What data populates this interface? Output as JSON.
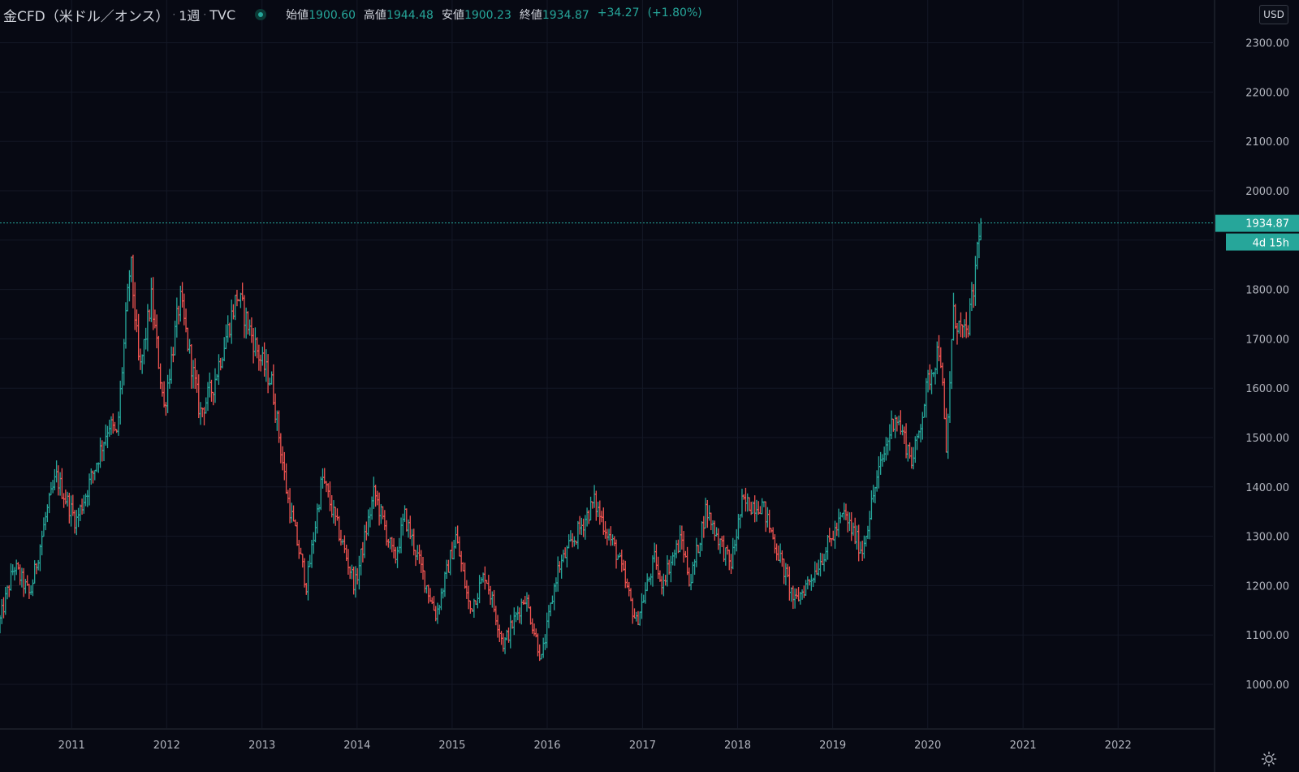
{
  "header": {
    "symbol": "金CFD（米ドル／オンス）",
    "interval": "1週",
    "source": "TVC",
    "ohlc": {
      "open_label": "始値",
      "open": "1900.60",
      "high_label": "高値",
      "high": "1944.48",
      "low_label": "安値",
      "low": "1900.23",
      "close_label": "終値",
      "close": "1934.87",
      "change": "+34.27",
      "change_pct": "(+1.80%)"
    }
  },
  "currency_button": "USD",
  "price_tag": {
    "value": "1934.87",
    "countdown": "4d 15h"
  },
  "icons": {
    "settings": "sun-settings-icon",
    "market_status": "status-dot-icon"
  },
  "colors": {
    "background": "#070913",
    "up": "#26a69a",
    "down": "#ef5350",
    "grid": "#141826",
    "axis_text": "#b2b5be"
  },
  "chart_data": {
    "type": "ohlc",
    "title": "金CFD（米ドル／オンス）",
    "interval": "1週",
    "currency": "USD",
    "x_range": [
      "2010-04-01",
      "2022-12-31"
    ],
    "ylim": [
      880,
      2340
    ],
    "x_ticks": [
      "2011",
      "2012",
      "2013",
      "2014",
      "2015",
      "2016",
      "2017",
      "2018",
      "2019",
      "2020",
      "2021",
      "2022"
    ],
    "y_ticks": [
      "1000.00",
      "1100.00",
      "1200.00",
      "1300.00",
      "1400.00",
      "1500.00",
      "1600.00",
      "1700.00",
      "1800.00",
      "1900.00",
      "2000.00",
      "2100.00",
      "2200.00",
      "2300.00"
    ],
    "last_price": 1934.87,
    "grid": true,
    "price_path": [
      [
        "2010-04-01",
        1115
      ],
      [
        "2010-06-01",
        1240
      ],
      [
        "2010-08-01",
        1180
      ],
      [
        "2010-10-01",
        1340
      ],
      [
        "2010-11-10",
        1420
      ],
      [
        "2011-01-25",
        1330
      ],
      [
        "2011-04-01",
        1430
      ],
      [
        "2011-06-01",
        1530
      ],
      [
        "2011-07-01",
        1500
      ],
      [
        "2011-08-22",
        1860
      ],
      [
        "2011-09-26",
        1630
      ],
      [
        "2011-11-10",
        1780
      ],
      [
        "2011-12-29",
        1560
      ],
      [
        "2012-02-28",
        1780
      ],
      [
        "2012-05-15",
        1550
      ],
      [
        "2012-07-01",
        1600
      ],
      [
        "2012-10-05",
        1790
      ],
      [
        "2012-12-31",
        1660
      ],
      [
        "2013-02-15",
        1610
      ],
      [
        "2013-04-15",
        1380
      ],
      [
        "2013-06-28",
        1200
      ],
      [
        "2013-08-27",
        1420
      ],
      [
        "2013-12-31",
        1200
      ],
      [
        "2014-03-15",
        1390
      ],
      [
        "2014-06-01",
        1250
      ],
      [
        "2014-07-10",
        1340
      ],
      [
        "2014-11-07",
        1140
      ],
      [
        "2015-01-22",
        1300
      ],
      [
        "2015-03-17",
        1150
      ],
      [
        "2015-05-15",
        1225
      ],
      [
        "2015-07-24",
        1080
      ],
      [
        "2015-10-15",
        1180
      ],
      [
        "2015-12-17",
        1050
      ],
      [
        "2016-02-15",
        1230
      ],
      [
        "2016-07-06",
        1370
      ],
      [
        "2016-10-05",
        1260
      ],
      [
        "2016-12-15",
        1125
      ],
      [
        "2017-02-27",
        1260
      ],
      [
        "2017-03-15",
        1200
      ],
      [
        "2017-06-06",
        1295
      ],
      [
        "2017-07-10",
        1205
      ],
      [
        "2017-09-08",
        1355
      ],
      [
        "2017-12-12",
        1240
      ],
      [
        "2018-01-25",
        1365
      ],
      [
        "2018-04-11",
        1365
      ],
      [
        "2018-08-16",
        1165
      ],
      [
        "2018-11-01",
        1230
      ],
      [
        "2019-02-20",
        1345
      ],
      [
        "2019-05-01",
        1270
      ],
      [
        "2019-06-20",
        1400
      ],
      [
        "2019-09-04",
        1550
      ],
      [
        "2019-11-12",
        1450
      ],
      [
        "2020-01-08",
        1610
      ],
      [
        "2020-02-24",
        1690
      ],
      [
        "2020-03-19",
        1460
      ],
      [
        "2020-04-14",
        1750
      ],
      [
        "2020-06-01",
        1700
      ],
      [
        "2020-07-01",
        1790
      ],
      [
        "2020-07-24",
        1934.87
      ]
    ]
  }
}
